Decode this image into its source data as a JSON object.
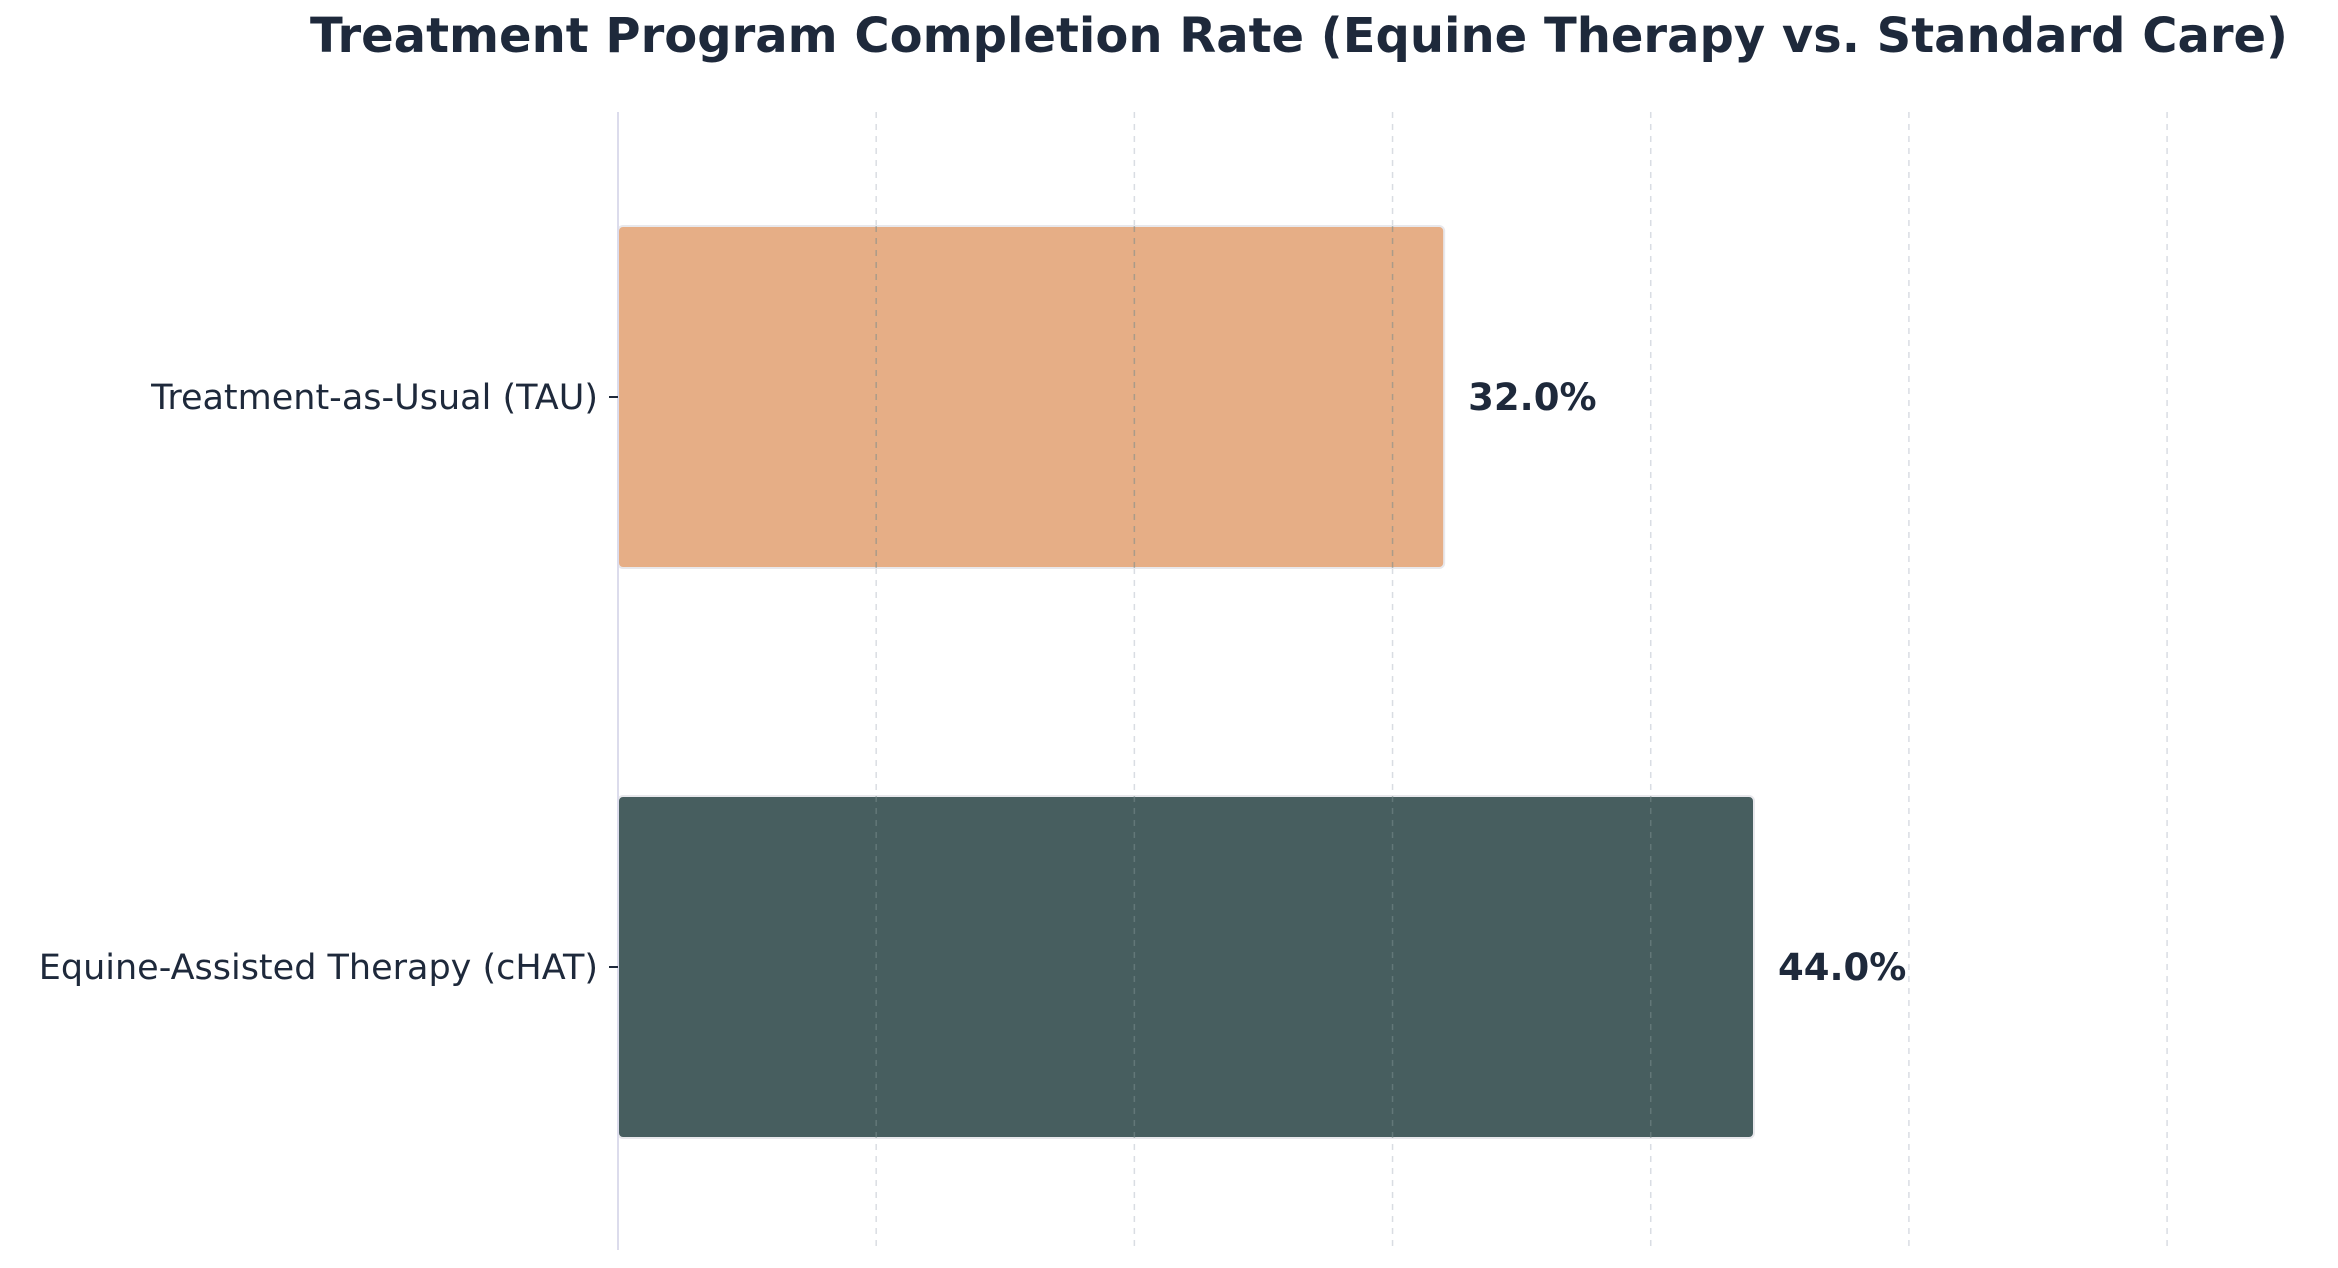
{
  "chart_data": {
    "type": "bar",
    "orientation": "horizontal",
    "title": "Treatment Program Completion Rate (Equine Therapy vs. Standard Care)",
    "categories": [
      "Equine-Assisted Therapy (cHAT)",
      "Treatment-as-Usual (TAU)"
    ],
    "values": [
      44.0,
      32.0
    ],
    "value_labels": [
      "44.0%",
      "32.0%"
    ],
    "colors": [
      "#475e5f",
      "#e6ae86"
    ],
    "xlim": [
      0,
      66
    ],
    "grid_step": 10,
    "xlabel": "",
    "ylabel": "",
    "x_ticks_visible": false,
    "grid": true,
    "legend": false
  }
}
